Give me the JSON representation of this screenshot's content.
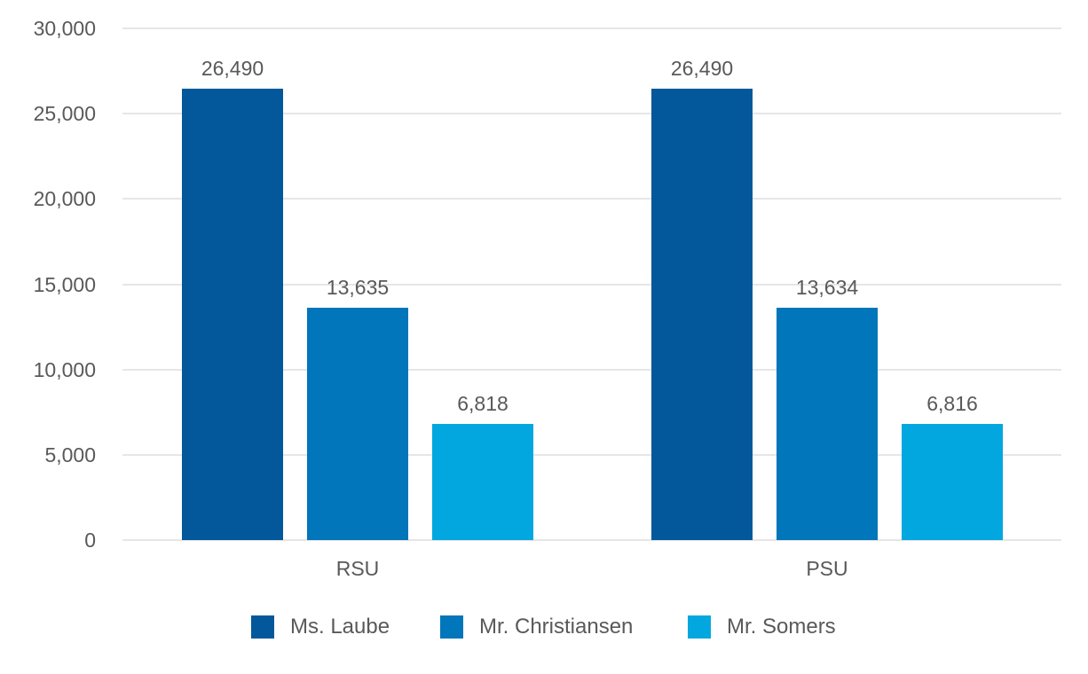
{
  "chart_data": {
    "type": "bar",
    "title": "",
    "xlabel": "",
    "ylabel": "",
    "categories": [
      "RSU",
      "PSU"
    ],
    "series": [
      {
        "name": "Ms. Laube",
        "color": "#02589A",
        "values": [
          26490,
          26490
        ],
        "labels": [
          "26,490",
          "26,490"
        ]
      },
      {
        "name": "Mr. Christiansen",
        "color": "#0276BA",
        "values": [
          13635,
          13634
        ],
        "labels": [
          "13,635",
          "13,634"
        ]
      },
      {
        "name": "Mr. Somers",
        "color": "#02A7DF",
        "values": [
          6818,
          6816
        ],
        "labels": [
          "6,818",
          "6,816"
        ]
      }
    ],
    "ylim": [
      0,
      30000
    ],
    "yticks": [
      0,
      5000,
      10000,
      15000,
      20000,
      25000,
      30000
    ],
    "ytick_labels": [
      "0",
      "5,000",
      "10,000",
      "15,000",
      "20,000",
      "25,000",
      "30,000"
    ],
    "grid": true,
    "legend_position": "bottom"
  }
}
